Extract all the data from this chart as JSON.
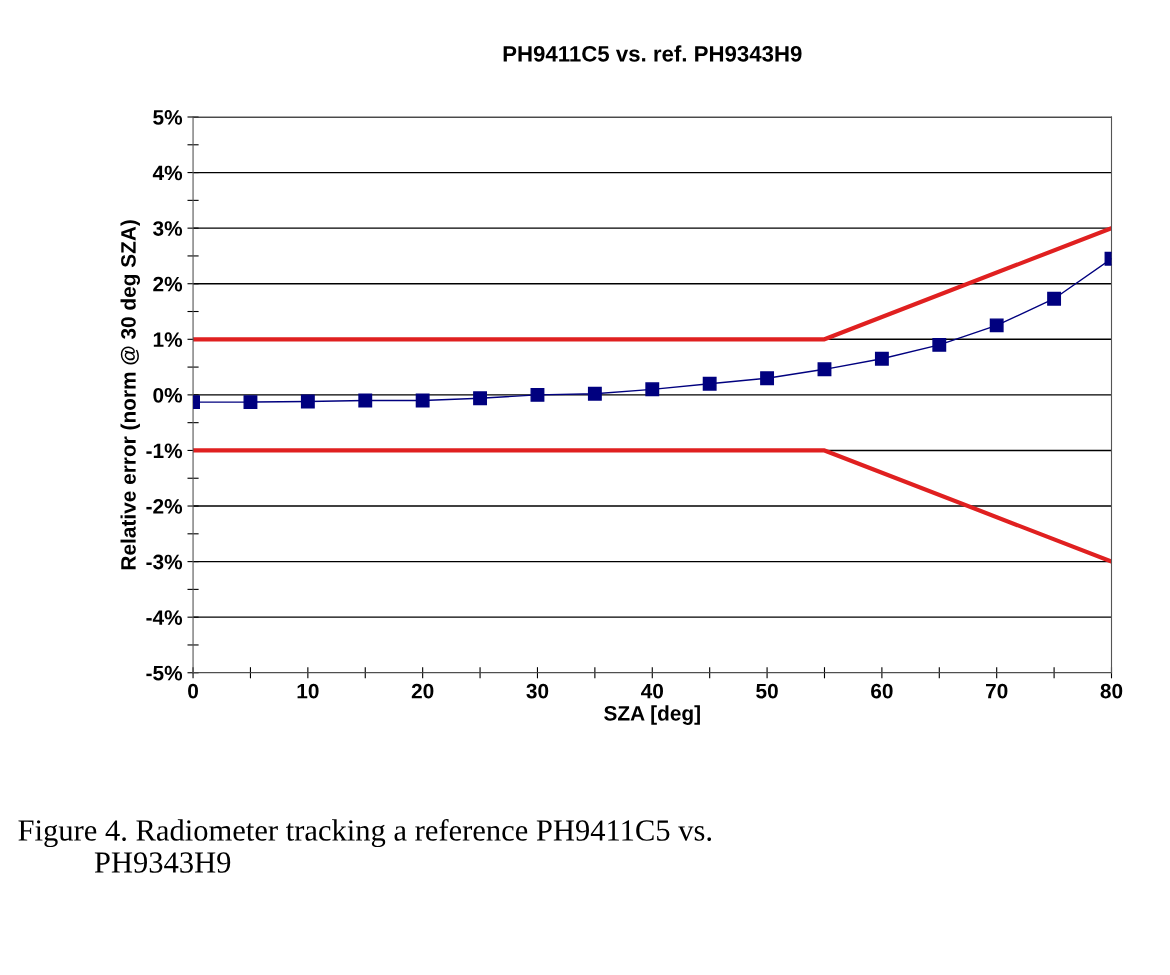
{
  "chart_data": {
    "type": "line",
    "title": "PH9411C5 vs. ref. PH9343H9",
    "xlabel": "SZA [deg]",
    "ylabel": "Relative error (norm @ 30 deg SZA)",
    "annotations": [
      "Figure 4. Radiometer tracking a reference PH9411C5 vs.\n          PH9343H9"
    ],
    "x": [
      0,
      5,
      10,
      15,
      20,
      25,
      30,
      35,
      40,
      45,
      50,
      55,
      60,
      65,
      70,
      75,
      80
    ],
    "series": [
      {
        "color": "#00007f",
        "marker": "square",
        "values": [
          -0.13,
          -0.13,
          -0.12,
          -0.1,
          -0.1,
          -0.06,
          0,
          0.02,
          0.1,
          0.2,
          0.3,
          0.46,
          0.65,
          0.9,
          1.25,
          1.73,
          2.45
        ]
      },
      {
        "color": "#e02020",
        "marker": "none",
        "x": [
          0,
          55,
          80
        ],
        "values": [
          1,
          1,
          3
        ]
      },
      {
        "color": "#e02020",
        "marker": "none",
        "x": [
          0,
          55,
          80
        ],
        "values": [
          -1,
          -1,
          -3
        ]
      }
    ],
    "xlim": [
      0,
      80
    ],
    "xticks": [
      0,
      {
        "value": 5,
        "label": null
      },
      10,
      {
        "value": 15,
        "label": null
      },
      20,
      {
        "value": 25,
        "label": null
      },
      30,
      {
        "value": 35,
        "label": null
      },
      40,
      {
        "value": 45,
        "label": null
      },
      50,
      {
        "value": 55,
        "label": null
      },
      60,
      {
        "value": 65,
        "label": null
      },
      70,
      {
        "value": 75,
        "label": null
      },
      80
    ],
    "ylim": [
      -5,
      5
    ],
    "yticks": [
      {
        "value": -5,
        "label": "-5%"
      },
      {
        "value": -4.5,
        "label": null
      },
      {
        "value": -4,
        "label": "-4%"
      },
      {
        "value": -3.5,
        "label": null
      },
      {
        "value": -3,
        "label": "-3%"
      },
      {
        "value": -2.5,
        "label": null
      },
      {
        "value": -2,
        "label": "-2%"
      },
      {
        "value": -1.5,
        "label": null
      },
      {
        "value": -1,
        "label": "-1%"
      },
      {
        "value": -0.5,
        "label": null
      },
      {
        "value": 0,
        "label": "0%"
      },
      {
        "value": 0.5,
        "label": null
      },
      {
        "value": 1,
        "label": "1%"
      },
      {
        "value": 1.5,
        "label": null
      },
      {
        "value": 2,
        "label": "2%"
      },
      {
        "value": 2.5,
        "label": null
      },
      {
        "value": 3,
        "label": "3%"
      },
      {
        "value": 3.5,
        "label": null
      },
      {
        "value": 4,
        "label": "4%"
      },
      {
        "value": 4.5,
        "label": null
      },
      {
        "value": 5,
        "label": "5%"
      }
    ],
    "grid": "y",
    "legend": false
  }
}
